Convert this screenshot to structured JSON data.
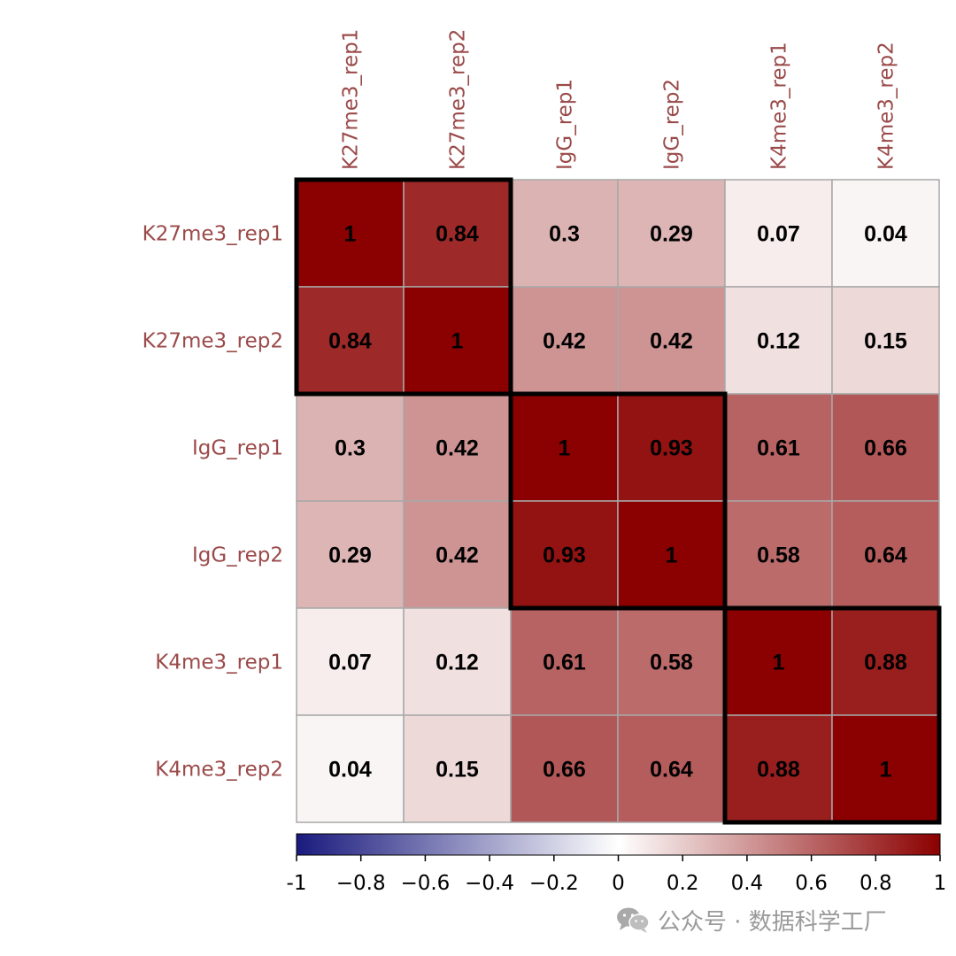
{
  "chart_data": {
    "type": "heatmap",
    "row_labels": [
      "K27me3_rep1",
      "K27me3_rep2",
      "IgG_rep1",
      "IgG_rep2",
      "K4me3_rep1",
      "K4me3_rep2"
    ],
    "col_labels": [
      "K27me3_rep1",
      "K27me3_rep2",
      "IgG_rep1",
      "IgG_rep2",
      "K4me3_rep1",
      "K4me3_rep2"
    ],
    "values": [
      [
        1,
        0.84,
        0.3,
        0.29,
        0.07,
        0.04
      ],
      [
        0.84,
        1,
        0.42,
        0.42,
        0.12,
        0.15
      ],
      [
        0.3,
        0.42,
        1,
        0.93,
        0.61,
        0.66
      ],
      [
        0.29,
        0.42,
        0.93,
        1,
        0.58,
        0.64
      ],
      [
        0.07,
        0.12,
        0.61,
        0.58,
        1,
        0.88
      ],
      [
        0.04,
        0.15,
        0.66,
        0.64,
        0.88,
        1
      ]
    ],
    "value_labels": [
      [
        "1",
        "0.84",
        "0.3",
        "0.29",
        "0.07",
        "0.04"
      ],
      [
        "0.84",
        "1",
        "0.42",
        "0.42",
        "0.12",
        "0.15"
      ],
      [
        "0.3",
        "0.42",
        "1",
        "0.93",
        "0.61",
        "0.66"
      ],
      [
        "0.29",
        "0.42",
        "0.93",
        "1",
        "0.58",
        "0.64"
      ],
      [
        "0.07",
        "0.12",
        "0.61",
        "0.58",
        "1",
        "0.88"
      ],
      [
        "0.04",
        "0.15",
        "0.66",
        "0.64",
        "0.88",
        "1"
      ]
    ],
    "clusters": [
      {
        "start": 0,
        "end": 1
      },
      {
        "start": 2,
        "end": 3
      },
      {
        "start": 4,
        "end": 5
      }
    ],
    "colorbar": {
      "range": [
        -1,
        1
      ],
      "ticks": [
        -1,
        -0.8,
        -0.6,
        -0.4,
        -0.2,
        0,
        0.2,
        0.4,
        0.6,
        0.8,
        1
      ],
      "tick_labels": [
        "-1",
        "−0.8",
        "−0.6",
        "−0.4",
        "−0.2",
        "0",
        "0.2",
        "0.4",
        "0.6",
        "0.8",
        "1"
      ],
      "colors": [
        "#1a1a7e",
        "#ffffff",
        "#8b0000"
      ]
    },
    "label_color": "#9b4a4a",
    "grid_color": "#a8a8a8",
    "title": "",
    "xlabel": "",
    "ylabel": ""
  },
  "watermark": {
    "icon": "wechat-icon",
    "text": "公众号 · 数据科学工厂"
  }
}
